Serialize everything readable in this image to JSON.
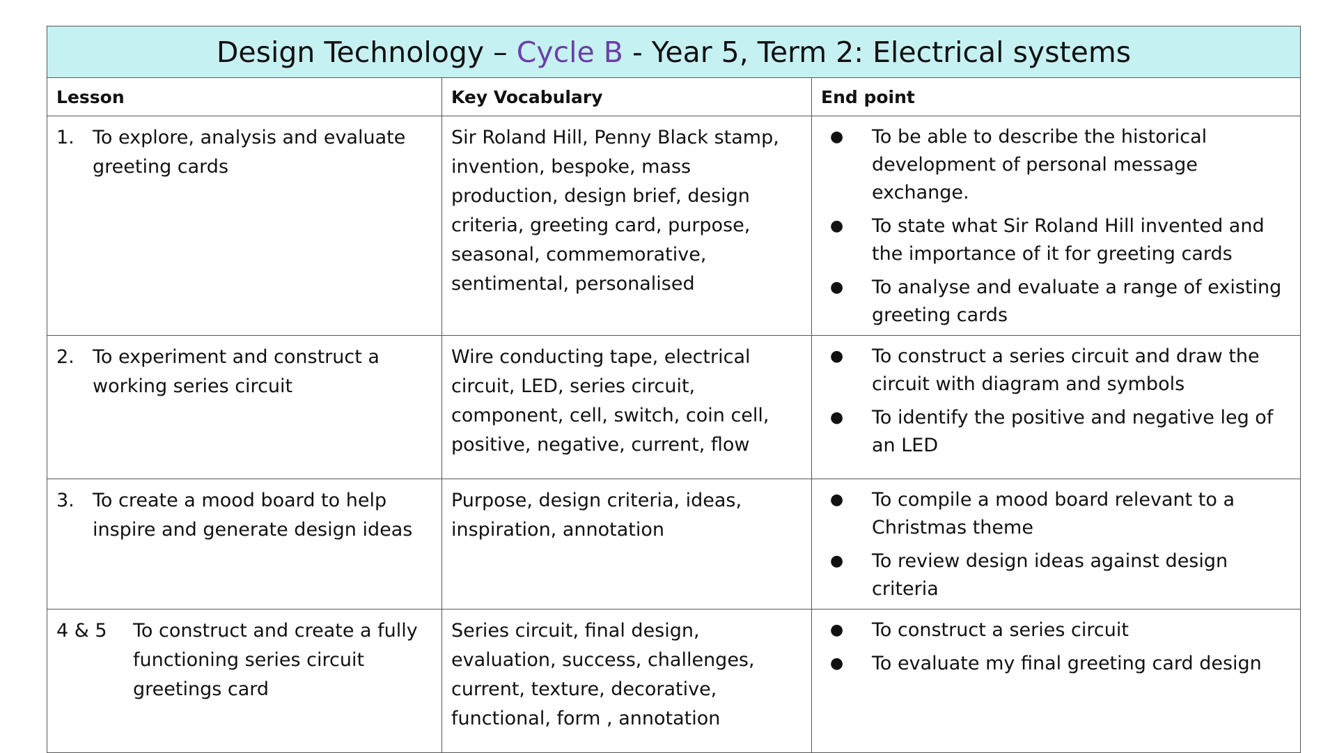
{
  "title": {
    "part1": "Design Technology – ",
    "cycle": "Cycle B",
    "part2": " - Year 5, Term 2: Electrical systems"
  },
  "colors": {
    "title_background": "#c6f1f2",
    "cycle_text": "#6b3fa6",
    "border": "#555555"
  },
  "headers": {
    "lesson": "Lesson",
    "vocab": "Key Vocabulary",
    "endpoint": "End point"
  },
  "rows": [
    {
      "num": "1.",
      "lesson": "To explore, analysis and evaluate greeting cards",
      "vocab": "Sir Roland Hill, Penny Black stamp, invention, bespoke, mass production, design brief, design criteria, greeting card, purpose, seasonal, commemorative, sentimental, personalised",
      "endpoints": [
        "To be able to describe the historical development of personal message exchange.",
        "To state what Sir Roland Hill invented and the importance of it for greeting cards",
        "To analyse and evaluate a range of existing greeting cards"
      ]
    },
    {
      "num": "2.",
      "lesson": "To experiment and construct a working series circuit",
      "vocab": "Wire conducting tape, electrical circuit, LED, series circuit, component, cell, switch, coin cell, positive, negative, current, flow",
      "endpoints": [
        "To construct a series circuit and draw the circuit with diagram and symbols",
        "To identify the positive and negative leg of an LED"
      ]
    },
    {
      "num": "3.",
      "lesson": "To create a mood board to help inspire and generate design ideas",
      "vocab": "Purpose, design criteria, ideas, inspiration, annotation",
      "endpoints": [
        "To compile a mood board relevant to a Christmas theme",
        "To review design ideas against design criteria"
      ]
    },
    {
      "num": "4 & 5",
      "lesson": "To construct and create a fully functioning series circuit greetings card",
      "vocab": "Series circuit, final design, evaluation, success, challenges, current, texture, decorative, functional, form , annotation",
      "endpoints": [
        "To construct a series circuit",
        "To evaluate my final greeting card design"
      ]
    }
  ]
}
